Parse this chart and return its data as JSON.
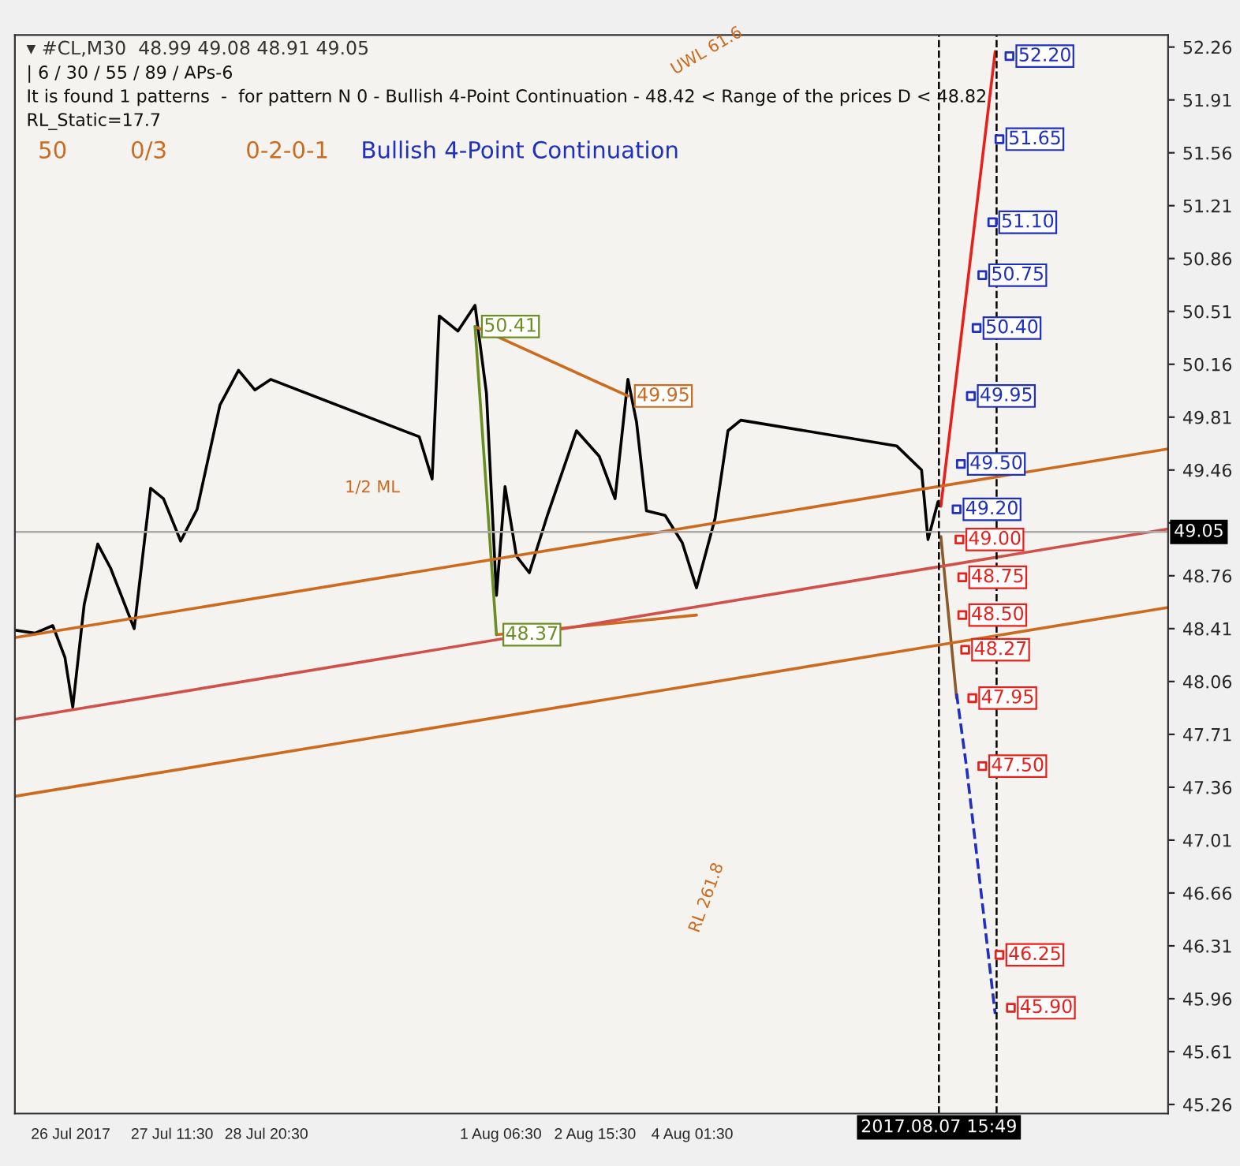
{
  "chart_data": {
    "type": "line",
    "title": "▾ #CL,M30  48.99 49.08 48.91 49.05",
    "annotations": [
      "| 6 / 30 / 55 / 89 / APs-6",
      "It is found 1 patterns  -  for pattern N 0 - Bullish 4-Point Continuation - 48.42 < Range of the prices D < 48.82",
      "RL_Static=17.7",
      "50",
      "0/3",
      "0-2-0-1",
      "Bullish 4-Point Continuation",
      "UWL 61.6",
      "RL 261.8",
      "1/2 ML",
      {
        "text": "50.41",
        "x": "2017-07-31T21:30",
        "y": 50.41
      },
      {
        "text": "49.95",
        "x": "2017-08-03T03:00",
        "y": 49.95
      },
      {
        "text": "48.37",
        "x": "2017-08-01T05:00",
        "y": 48.37
      },
      {
        "text": "52.20",
        "x": "2017-08-08T16:30",
        "y": 52.2
      },
      {
        "text": "51.65",
        "x": "2017-08-08T13:00",
        "y": 51.65
      },
      {
        "text": "51.10",
        "x": "2017-08-08T10:30",
        "y": 51.1
      },
      {
        "text": "50.75",
        "x": "2017-08-08T07:00",
        "y": 50.75
      },
      {
        "text": "50.40",
        "x": "2017-08-08T05:00",
        "y": 50.4
      },
      {
        "text": "49.95",
        "x": "2017-08-08T03:00",
        "y": 49.95
      },
      {
        "text": "49.50",
        "x": "2017-08-07T23:30",
        "y": 49.5
      },
      {
        "text": "49.20",
        "x": "2017-08-07T22:00",
        "y": 49.2
      },
      {
        "text": "49.00",
        "x": "2017-08-07T23:00",
        "y": 49.0
      },
      {
        "text": "48.75",
        "x": "2017-08-08T00:00",
        "y": 48.75
      },
      {
        "text": "48.50",
        "x": "2017-08-08T00:00",
        "y": 48.5
      },
      {
        "text": "48.27",
        "x": "2017-08-08T01:00",
        "y": 48.27
      },
      {
        "text": "47.95",
        "x": "2017-08-08T03:30",
        "y": 47.95
      },
      {
        "text": "47.50",
        "x": "2017-08-08T07:00",
        "y": 47.5
      },
      {
        "text": "46.25",
        "x": "2017-08-08T13:00",
        "y": 46.25
      },
      {
        "text": "45.90",
        "x": "2017-08-08T17:00",
        "y": 45.9
      }
    ],
    "xlim": [
      "2017-07-25T04:30",
      "2017-08-11T00:00"
    ],
    "ylim": [
      45.2,
      52.34
    ],
    "xticks": [
      {
        "value": "2017-07-26T00:00",
        "label": "26 Jul 2017"
      },
      {
        "value": "2017-07-27T11:30",
        "label": "27 Jul 11:30"
      },
      {
        "value": "2017-07-28T20:30",
        "label": "28 Jul 20:30"
      },
      {
        "value": "2017-08-01T06:30",
        "label": "1 Aug 06:30"
      },
      {
        "value": "2017-08-02T15:30",
        "label": "2 Aug 15:30"
      },
      {
        "value": "2017-08-04T01:30",
        "label": "4 Aug 01:30"
      }
    ],
    "yticks": [
      52.26,
      51.91,
      51.56,
      51.21,
      50.86,
      50.51,
      50.16,
      49.81,
      49.46,
      {
        "value": 49.11,
        "label": null
      },
      48.76,
      48.41,
      48.06,
      47.71,
      47.36,
      47.01,
      46.66,
      46.31,
      45.96,
      45.61,
      45.26
    ],
    "grid": false,
    "legend": false,
    "ref_lines": [
      {
        "axis": "y",
        "value": 49.05,
        "label": "49.05",
        "color": "#aaaaaa"
      },
      {
        "axis": "x",
        "value": "2017-08-07T15:49",
        "label": "2017.08.07 15:49",
        "color": "#000000",
        "line_style": "dashed"
      },
      {
        "axis": "x",
        "value": "2017-08-08T12:00",
        "label": null,
        "color": "#000000",
        "line_style": "dashed"
      }
    ],
    "series": [
      {
        "color": "#000000",
        "x": [
          "2017-07-25T04:30",
          "2017-07-25T11:30",
          "2017-07-25T17:45",
          "2017-07-25T22:00",
          "2017-07-26T00:45",
          "2017-07-26T04:45",
          "2017-07-26T09:30",
          "2017-07-26T14:00",
          "2017-07-26T22:15",
          "2017-07-27T04:00",
          "2017-07-27T08:30",
          "2017-07-27T14:30",
          "2017-07-27T20:15",
          "2017-07-28T04:15",
          "2017-07-28T10:45",
          "2017-07-28T16:30",
          "2017-07-28T22:00",
          "2017-07-31T02:00",
          "2017-07-31T06:30",
          "2017-07-31T09:00",
          "2017-07-31T15:30",
          "2017-07-31T21:30",
          "2017-08-01T01:30",
          "2017-08-01T05:00",
          "2017-08-01T08:00",
          "2017-08-01T12:00",
          "2017-08-01T16:30",
          "2017-08-01T23:00",
          "2017-08-02T09:00",
          "2017-08-02T17:00",
          "2017-08-02T22:30",
          "2017-08-03T03:00",
          "2017-08-03T06:00",
          "2017-08-03T09:30",
          "2017-08-03T16:00",
          "2017-08-03T22:00",
          "2017-08-04T03:00",
          "2017-08-04T09:30",
          "2017-08-04T14:00",
          "2017-08-04T18:30",
          "2017-08-07T01:00",
          "2017-08-07T09:45",
          "2017-08-07T12:00",
          "2017-08-07T15:30"
        ],
        "values": [
          48.4,
          48.38,
          48.43,
          48.22,
          47.89,
          48.57,
          48.97,
          48.81,
          48.41,
          49.34,
          49.27,
          48.99,
          49.2,
          49.89,
          50.12,
          49.99,
          50.06,
          49.68,
          49.4,
          50.48,
          50.38,
          50.55,
          49.97,
          48.63,
          49.35,
          48.89,
          48.78,
          49.17,
          49.72,
          49.55,
          49.27,
          50.06,
          49.78,
          49.19,
          49.16,
          48.98,
          48.68,
          49.14,
          49.72,
          49.79,
          49.62,
          49.46,
          49.0,
          49.25
        ]
      },
      {
        "color": "#cc6a1e",
        "x": [
          "2017-07-31T21:30",
          "2017-08-03T03:00"
        ],
        "values": [
          50.41,
          49.95
        ]
      },
      {
        "color": "#cc6a1e",
        "x": [
          "2017-08-01T05:00",
          "2017-08-04T03:00"
        ],
        "values": [
          48.37,
          48.5
        ]
      },
      {
        "color": "#6b8e23",
        "x": [
          "2017-07-31T21:30",
          "2017-08-01T05:00"
        ],
        "values": [
          50.41,
          48.37
        ]
      },
      {
        "color": "#e8201c",
        "x": [
          "2017-08-07T16:30",
          "2017-08-08T11:30"
        ],
        "values": [
          49.22,
          52.23
        ]
      },
      {
        "color": "#8b5a2b",
        "x": [
          "2017-08-07T16:30",
          "2017-08-07T22:00"
        ],
        "values": [
          49.02,
          47.95
        ]
      },
      {
        "color": "#1f2fbf",
        "x": [
          "2017-08-07T22:00",
          "2017-08-08T01:30",
          "2017-08-08T11:30"
        ],
        "values": [
          47.98,
          47.49,
          45.86
        ],
        "line_style": "dashed"
      },
      {
        "color": "#cc6a1e",
        "x": [
          "2017-07-25T04:30",
          "2017-08-11T00:00"
        ],
        "values": [
          48.35,
          49.6
        ]
      },
      {
        "color": "#d0504a",
        "x": [
          "2017-07-25T04:30",
          "2017-08-11T00:00"
        ],
        "values": [
          47.81,
          49.07
        ]
      },
      {
        "color": "#cc6a1e",
        "x": [
          "2017-07-25T04:30",
          "2017-08-11T00:00"
        ],
        "values": [
          47.3,
          48.55
        ]
      },
      {
        "type": "scatter",
        "marker": "square",
        "color": "#1f2fbf",
        "x": [
          "2017-08-08T16:30",
          "2017-08-08T13:00",
          "2017-08-08T10:30",
          "2017-08-08T07:00",
          "2017-08-08T05:00",
          "2017-08-08T03:00",
          "2017-08-07T23:30",
          "2017-08-07T22:00"
        ],
        "values": [
          52.2,
          51.65,
          51.1,
          50.75,
          50.4,
          49.95,
          49.5,
          49.2
        ]
      },
      {
        "type": "scatter",
        "marker": "square",
        "color": "#e8201c",
        "x": [
          "2017-08-07T23:00",
          "2017-08-08T00:00",
          "2017-08-08T00:00",
          "2017-08-08T01:00",
          "2017-08-08T03:30",
          "2017-08-08T07:00",
          "2017-08-08T13:00",
          "2017-08-08T17:00"
        ],
        "values": [
          49.0,
          48.75,
          48.5,
          48.27,
          47.95,
          47.5,
          46.25,
          45.9
        ]
      }
    ]
  }
}
